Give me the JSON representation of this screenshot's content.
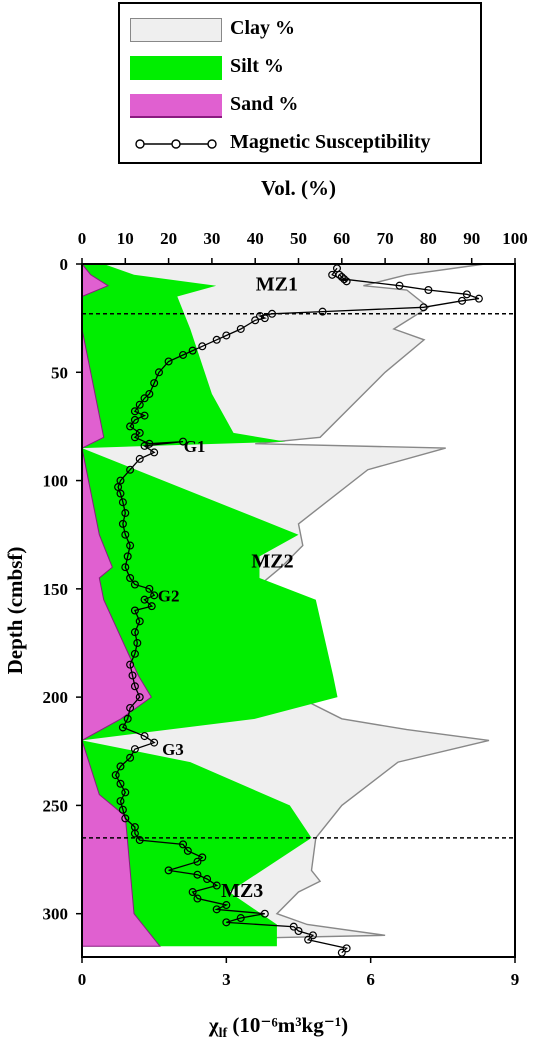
{
  "legend": {
    "clay": "Clay %",
    "silt": "Silt %",
    "sand": "Sand %",
    "magsus": "Magnetic Susceptibility"
  },
  "colors": {
    "clay_fill": "#efefef",
    "clay_line": "#888888",
    "silt_fill": "#00ee00",
    "sand_fill": "#e060d0",
    "sand_line": "#8a1a80",
    "magsus_line": "#000000"
  },
  "chart_data": {
    "type": "area",
    "orientation": "depth-profile",
    "top_axis": {
      "label": "Vol. (%)",
      "range": [
        0,
        100
      ],
      "ticks": [
        0,
        10,
        20,
        30,
        40,
        50,
        60,
        70,
        80,
        90,
        100
      ]
    },
    "bottom_axis": {
      "label_main": "χ",
      "label_sub": "lf",
      "label_rest": " (10⁻⁶m³kg⁻¹)",
      "range": [
        0,
        9
      ],
      "ticks": [
        0,
        3,
        6,
        9
      ]
    },
    "y_axis": {
      "label": "Depth (cmbsf)",
      "range": [
        0,
        320
      ],
      "ticks": [
        0,
        50,
        100,
        150,
        200,
        250,
        300
      ],
      "inverted": true
    },
    "zone_boundaries": [
      23,
      265
    ],
    "zone_labels": [
      {
        "text": "MZ1",
        "x_vol": 45,
        "depth": 9
      },
      {
        "text": "MZ2",
        "x_vol": 44,
        "depth": 137
      },
      {
        "text": "MZ3",
        "x_vol": 37,
        "depth": 289
      }
    ],
    "grain_labels": [
      {
        "text": "G1",
        "x_vol": 26,
        "depth": 84
      },
      {
        "text": "G2",
        "x_vol": 20,
        "depth": 153
      },
      {
        "text": "G3",
        "x_vol": 21,
        "depth": 224
      }
    ],
    "sand_cum": [
      [
        0,
        0
      ],
      [
        5,
        2
      ],
      [
        10,
        6
      ],
      [
        15,
        0
      ],
      [
        30,
        0
      ],
      [
        80,
        5
      ],
      [
        85,
        0
      ],
      [
        125,
        4
      ],
      [
        140,
        7
      ],
      [
        145,
        4
      ],
      [
        155,
        5
      ],
      [
        190,
        13
      ],
      [
        200,
        16
      ],
      [
        210,
        9
      ],
      [
        220,
        0
      ],
      [
        245,
        4
      ],
      [
        250,
        7
      ],
      [
        255,
        10
      ],
      [
        300,
        12
      ],
      [
        315,
        18
      ]
    ],
    "silt_cum": [
      [
        0,
        5
      ],
      [
        5,
        12
      ],
      [
        10,
        31
      ],
      [
        15,
        22
      ],
      [
        30,
        25
      ],
      [
        60,
        30
      ],
      [
        78,
        35
      ],
      [
        82,
        47
      ],
      [
        85,
        0
      ],
      [
        125,
        50
      ],
      [
        135,
        41
      ],
      [
        145,
        41
      ],
      [
        155,
        54
      ],
      [
        190,
        58
      ],
      [
        200,
        59
      ],
      [
        210,
        40
      ],
      [
        220,
        0
      ],
      [
        230,
        25
      ],
      [
        250,
        48
      ],
      [
        265,
        53
      ],
      [
        290,
        34
      ],
      [
        305,
        45
      ],
      [
        315,
        45
      ]
    ],
    "clay_cum": [
      [
        0,
        93
      ],
      [
        5,
        75
      ],
      [
        10,
        65
      ],
      [
        12,
        75
      ],
      [
        20,
        80
      ],
      [
        30,
        72
      ],
      [
        35,
        79
      ],
      [
        50,
        70
      ],
      [
        80,
        55
      ],
      [
        83,
        40
      ],
      [
        85,
        84
      ],
      [
        95,
        66
      ],
      [
        120,
        50
      ],
      [
        130,
        51
      ],
      [
        140,
        46
      ],
      [
        150,
        40
      ],
      [
        155,
        42
      ],
      [
        160,
        35
      ],
      [
        180,
        35
      ],
      [
        195,
        26
      ],
      [
        200,
        50
      ],
      [
        210,
        60
      ],
      [
        215,
        75
      ],
      [
        220,
        94
      ],
      [
        230,
        73
      ],
      [
        250,
        60
      ],
      [
        265,
        54
      ],
      [
        280,
        53
      ],
      [
        285,
        55
      ],
      [
        290,
        50
      ],
      [
        300,
        45
      ],
      [
        305,
        52
      ],
      [
        310,
        70
      ],
      [
        313,
        0
      ]
    ],
    "magsus": [
      [
        2,
        5.3
      ],
      [
        5,
        5.2
      ],
      [
        8,
        5.5
      ],
      [
        6,
        5.4
      ],
      [
        5,
        5.35
      ],
      [
        7,
        5.45
      ],
      [
        10,
        6.6
      ],
      [
        12,
        7.2
      ],
      [
        14,
        8.0
      ],
      [
        16,
        8.25
      ],
      [
        17,
        7.9
      ],
      [
        20,
        7.1
      ],
      [
        22,
        5.0
      ],
      [
        23,
        3.95
      ],
      [
        24,
        3.7
      ],
      [
        25,
        3.8
      ],
      [
        26,
        3.6
      ],
      [
        30,
        3.3
      ],
      [
        33,
        3.0
      ],
      [
        35,
        2.8
      ],
      [
        38,
        2.5
      ],
      [
        40,
        2.3
      ],
      [
        42,
        2.1
      ],
      [
        45,
        1.8
      ],
      [
        50,
        1.6
      ],
      [
        55,
        1.5
      ],
      [
        60,
        1.4
      ],
      [
        62,
        1.3
      ],
      [
        65,
        1.2
      ],
      [
        68,
        1.1
      ],
      [
        70,
        1.3
      ],
      [
        72,
        1.1
      ],
      [
        75,
        1.0
      ],
      [
        78,
        1.2
      ],
      [
        80,
        1.1
      ],
      [
        83,
        1.4
      ],
      [
        82,
        2.1
      ],
      [
        84,
        1.3
      ],
      [
        87,
        1.5
      ],
      [
        90,
        1.2
      ],
      [
        95,
        1.0
      ],
      [
        100,
        0.8
      ],
      [
        103,
        0.75
      ],
      [
        106,
        0.8
      ],
      [
        110,
        0.85
      ],
      [
        115,
        0.9
      ],
      [
        120,
        0.85
      ],
      [
        125,
        0.9
      ],
      [
        130,
        1.0
      ],
      [
        135,
        0.95
      ],
      [
        140,
        0.9
      ],
      [
        145,
        1.0
      ],
      [
        148,
        1.1
      ],
      [
        150,
        1.4
      ],
      [
        153,
        1.5
      ],
      [
        155,
        1.3
      ],
      [
        158,
        1.45
      ],
      [
        160,
        1.1
      ],
      [
        165,
        1.2
      ],
      [
        170,
        1.1
      ],
      [
        175,
        1.15
      ],
      [
        180,
        1.1
      ],
      [
        185,
        1.0
      ],
      [
        190,
        1.05
      ],
      [
        195,
        1.1
      ],
      [
        200,
        1.2
      ],
      [
        205,
        1.0
      ],
      [
        210,
        0.95
      ],
      [
        214,
        0.85
      ],
      [
        218,
        1.3
      ],
      [
        221,
        1.5
      ],
      [
        224,
        1.1
      ],
      [
        228,
        1.0
      ],
      [
        232,
        0.8
      ],
      [
        236,
        0.7
      ],
      [
        240,
        0.8
      ],
      [
        244,
        0.9
      ],
      [
        248,
        0.8
      ],
      [
        252,
        0.85
      ],
      [
        256,
        0.9
      ],
      [
        260,
        1.1
      ],
      [
        263,
        1.1
      ],
      [
        266,
        1.2
      ],
      [
        268,
        2.1
      ],
      [
        271,
        2.2
      ],
      [
        274,
        2.5
      ],
      [
        276,
        2.4
      ],
      [
        280,
        1.8
      ],
      [
        282,
        2.4
      ],
      [
        284,
        2.6
      ],
      [
        287,
        2.8
      ],
      [
        290,
        2.3
      ],
      [
        293,
        2.4
      ],
      [
        296,
        3.0
      ],
      [
        298,
        2.8
      ],
      [
        300,
        3.8
      ],
      [
        302,
        3.3
      ],
      [
        304,
        3.0
      ],
      [
        306,
        4.4
      ],
      [
        308,
        4.5
      ],
      [
        310,
        4.8
      ],
      [
        312,
        4.7
      ],
      [
        316,
        5.5
      ],
      [
        318,
        5.4
      ]
    ]
  }
}
